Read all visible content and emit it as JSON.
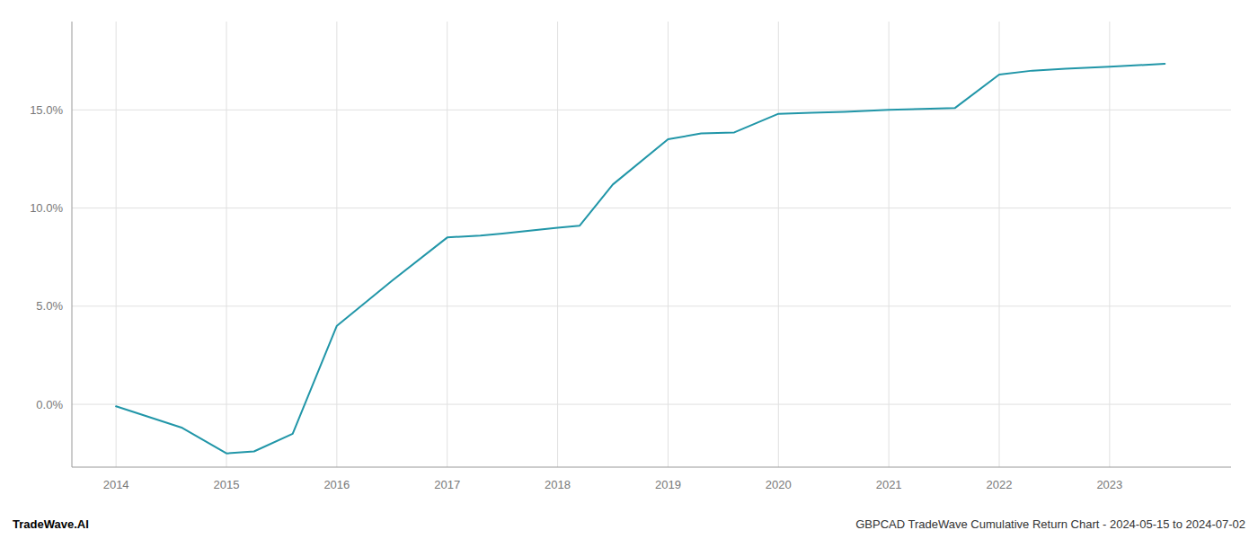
{
  "chart_data": {
    "type": "line",
    "x": [
      2014.0,
      2014.6,
      2015.0,
      2015.25,
      2015.6,
      2016.0,
      2016.5,
      2017.0,
      2017.3,
      2017.5,
      2018.0,
      2018.2,
      2018.5,
      2019.0,
      2019.3,
      2019.6,
      2020.0,
      2020.3,
      2020.6,
      2021.0,
      2021.3,
      2021.6,
      2022.0,
      2022.3,
      2022.6,
      2023.0,
      2023.5
    ],
    "values": [
      -0.1,
      -1.2,
      -2.5,
      -2.4,
      -1.5,
      4.0,
      6.3,
      8.5,
      8.6,
      8.7,
      9.0,
      9.1,
      11.2,
      13.5,
      13.8,
      13.85,
      14.8,
      14.85,
      14.9,
      15.0,
      15.05,
      15.1,
      16.8,
      17.0,
      17.1,
      17.2,
      17.35
    ],
    "color": "#2196a8",
    "xlim": [
      2013.6,
      2024.1
    ],
    "ylim": [
      -3.2,
      19.5
    ],
    "xticks": [
      2014,
      2015,
      2016,
      2017,
      2018,
      2019,
      2020,
      2021,
      2022,
      2023
    ],
    "yticks": [
      {
        "value": 0.0,
        "label": "0.0%"
      },
      {
        "value": 5.0,
        "label": "5.0%"
      },
      {
        "value": 10.0,
        "label": "10.0%"
      },
      {
        "value": 15.0,
        "label": "15.0%"
      }
    ],
    "grid": true,
    "annotations": [
      "TradeWave.AI",
      "GBPCAD TradeWave Cumulative Return Chart - 2024-05-15 to 2024-07-02"
    ]
  }
}
